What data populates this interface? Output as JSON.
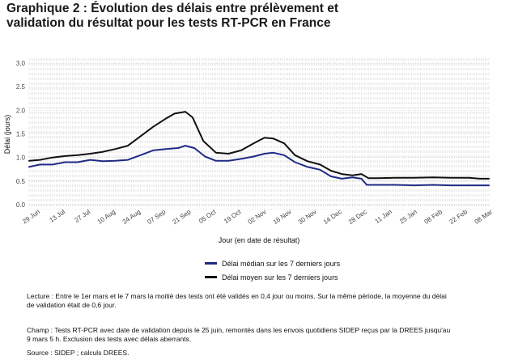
{
  "title_lines": [
    "Graphique 2 : Évolution des délais entre prélèvement et",
    "validation du résultat pour les tests RT-PCR en France"
  ],
  "chart_data": {
    "type": "line",
    "ylabel": "Délai (jours)",
    "xlabel": "Jour (en date de résultat)",
    "ylim": [
      0,
      3
    ],
    "y_ticks": [
      "0.0",
      "0.5",
      "1.0",
      "1.5",
      "2.0",
      "2.5",
      "3.0"
    ],
    "x_range": [
      "2020-06-25",
      "2021-03-08"
    ],
    "x_ticks": [
      {
        "date": "2020-06-29",
        "label": "29 Jun"
      },
      {
        "date": "2020-07-13",
        "label": "13 Jul"
      },
      {
        "date": "2020-07-27",
        "label": "27 Jul"
      },
      {
        "date": "2020-08-10",
        "label": "10 Aug"
      },
      {
        "date": "2020-08-24",
        "label": "24 Aug"
      },
      {
        "date": "2020-09-07",
        "label": "07 Sep"
      },
      {
        "date": "2020-09-21",
        "label": "21 Sep"
      },
      {
        "date": "2020-10-05",
        "label": "05 Oct"
      },
      {
        "date": "2020-10-19",
        "label": "19 Oct"
      },
      {
        "date": "2020-11-02",
        "label": "02 Nov"
      },
      {
        "date": "2020-11-16",
        "label": "16 Nov"
      },
      {
        "date": "2020-11-30",
        "label": "30 Nov"
      },
      {
        "date": "2020-12-14",
        "label": "14 Dec"
      },
      {
        "date": "2020-12-28",
        "label": "28 Dec"
      },
      {
        "date": "2021-01-11",
        "label": "11 Jan"
      },
      {
        "date": "2021-01-25",
        "label": "25 Jan"
      },
      {
        "date": "2021-02-08",
        "label": "08 Feb"
      },
      {
        "date": "2021-02-22",
        "label": "22 Feb"
      },
      {
        "date": "2021-03-08",
        "label": "08 Mar"
      }
    ],
    "grid": "vertical dashed (daily), horizontal dotted",
    "legend_position": "bottom",
    "series": [
      {
        "name": "Délai médian sur les 7 derniers jours",
        "color": "#1f2a86",
        "points": [
          [
            "2020-06-25",
            0.8
          ],
          [
            "2020-07-01",
            0.85
          ],
          [
            "2020-07-08",
            0.85
          ],
          [
            "2020-07-15",
            0.9
          ],
          [
            "2020-07-22",
            0.9
          ],
          [
            "2020-07-29",
            0.95
          ],
          [
            "2020-08-05",
            0.92
          ],
          [
            "2020-08-12",
            0.93
          ],
          [
            "2020-08-19",
            0.95
          ],
          [
            "2020-08-26",
            1.05
          ],
          [
            "2020-09-02",
            1.15
          ],
          [
            "2020-09-09",
            1.18
          ],
          [
            "2020-09-16",
            1.2
          ],
          [
            "2020-09-20",
            1.25
          ],
          [
            "2020-09-25",
            1.2
          ],
          [
            "2020-10-01",
            1.02
          ],
          [
            "2020-10-07",
            0.93
          ],
          [
            "2020-10-14",
            0.93
          ],
          [
            "2020-10-21",
            0.97
          ],
          [
            "2020-10-28",
            1.02
          ],
          [
            "2020-11-03",
            1.08
          ],
          [
            "2020-11-08",
            1.1
          ],
          [
            "2020-11-14",
            1.05
          ],
          [
            "2020-11-20",
            0.9
          ],
          [
            "2020-11-27",
            0.8
          ],
          [
            "2020-12-04",
            0.74
          ],
          [
            "2020-12-10",
            0.6
          ],
          [
            "2020-12-16",
            0.55
          ],
          [
            "2020-12-22",
            0.58
          ],
          [
            "2020-12-27",
            0.55
          ],
          [
            "2020-12-30",
            0.42
          ],
          [
            "2021-01-05",
            0.42
          ],
          [
            "2021-01-15",
            0.42
          ],
          [
            "2021-01-25",
            0.41
          ],
          [
            "2021-02-05",
            0.42
          ],
          [
            "2021-02-15",
            0.41
          ],
          [
            "2021-02-25",
            0.41
          ],
          [
            "2021-03-03",
            0.41
          ],
          [
            "2021-03-08",
            0.41
          ]
        ]
      },
      {
        "name": "Délai moyen sur les 7 derniers jours",
        "color": "#111111",
        "points": [
          [
            "2020-06-25",
            0.93
          ],
          [
            "2020-07-01",
            0.95
          ],
          [
            "2020-07-08",
            1.0
          ],
          [
            "2020-07-15",
            1.03
          ],
          [
            "2020-07-22",
            1.05
          ],
          [
            "2020-07-29",
            1.08
          ],
          [
            "2020-08-05",
            1.12
          ],
          [
            "2020-08-12",
            1.18
          ],
          [
            "2020-08-19",
            1.25
          ],
          [
            "2020-08-26",
            1.45
          ],
          [
            "2020-09-02",
            1.65
          ],
          [
            "2020-09-09",
            1.82
          ],
          [
            "2020-09-14",
            1.93
          ],
          [
            "2020-09-20",
            1.97
          ],
          [
            "2020-09-24",
            1.85
          ],
          [
            "2020-09-30",
            1.35
          ],
          [
            "2020-10-07",
            1.1
          ],
          [
            "2020-10-14",
            1.08
          ],
          [
            "2020-10-21",
            1.15
          ],
          [
            "2020-10-28",
            1.3
          ],
          [
            "2020-11-03",
            1.42
          ],
          [
            "2020-11-08",
            1.4
          ],
          [
            "2020-11-14",
            1.3
          ],
          [
            "2020-11-20",
            1.05
          ],
          [
            "2020-11-27",
            0.92
          ],
          [
            "2020-12-04",
            0.85
          ],
          [
            "2020-12-10",
            0.72
          ],
          [
            "2020-12-16",
            0.65
          ],
          [
            "2020-12-22",
            0.62
          ],
          [
            "2020-12-27",
            0.65
          ],
          [
            "2020-12-31",
            0.56
          ],
          [
            "2021-01-05",
            0.56
          ],
          [
            "2021-01-15",
            0.57
          ],
          [
            "2021-01-25",
            0.57
          ],
          [
            "2021-02-05",
            0.58
          ],
          [
            "2021-02-15",
            0.57
          ],
          [
            "2021-02-25",
            0.57
          ],
          [
            "2021-03-03",
            0.55
          ],
          [
            "2021-03-08",
            0.55
          ]
        ]
      }
    ]
  },
  "notes": {
    "lecture": [
      "Lecture : Entre le 1er mars et le 7 mars la moitié des tests ont été validés en 0,4 jour ou moins. Sur la même période, la moyenne du délai",
      "de validation était de 0,6 jour."
    ],
    "champ": [
      "Champ : Tests RT-PCR avec date de validation depuis le 25 juin, remontés dans les envois quotidiens SIDEP reçus par la DREES jusqu'au",
      "9 mars 5 h. Exclusion des tests avec délais aberrants."
    ],
    "source": "Source : SIDEP ; calculs DREES."
  }
}
